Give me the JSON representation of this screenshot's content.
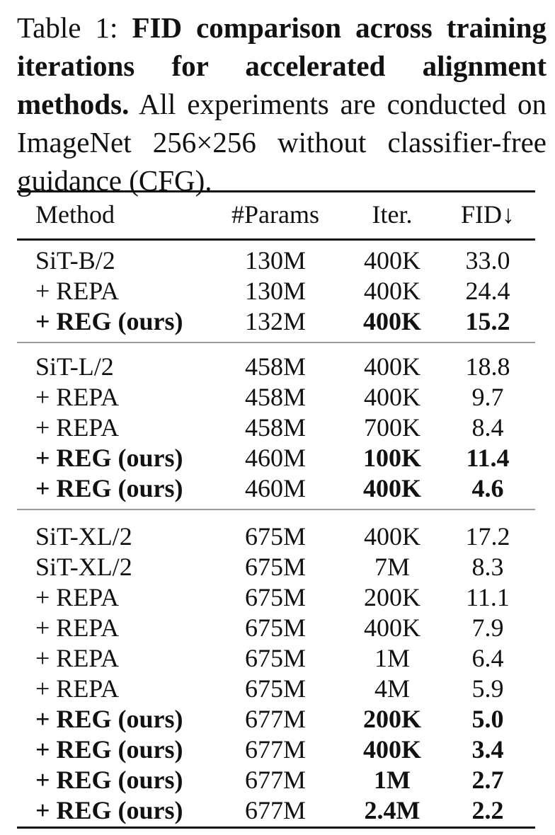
{
  "caption": {
    "label": "Table 1:",
    "bold_text": "FID comparison across training iterations for accelerated alignment methods.",
    "text": "All experiments are conducted on ImageNet 256×256 without classifier-free guidance (CFG)."
  },
  "table": {
    "headers": {
      "method": "Method",
      "params": "#Params",
      "iter": "Iter.",
      "fid": "FID↓"
    },
    "groups": [
      {
        "rows": [
          {
            "method": "SiT-B/2",
            "params": "130M",
            "iter": "400K",
            "fid": "33.0",
            "bold_method": false,
            "bold_iter": false,
            "bold_fid": false
          },
          {
            "method": "+ REPA",
            "params": "130M",
            "iter": "400K",
            "fid": "24.4",
            "bold_method": false,
            "bold_iter": false,
            "bold_fid": false
          },
          {
            "method": "+ REG (ours)",
            "params": "132M",
            "iter": "400K",
            "fid": "15.2",
            "bold_method": true,
            "bold_iter": true,
            "bold_fid": true
          }
        ]
      },
      {
        "rows": [
          {
            "method": "SiT-L/2",
            "params": "458M",
            "iter": "400K",
            "fid": "18.8",
            "bold_method": false,
            "bold_iter": false,
            "bold_fid": false
          },
          {
            "method": "+ REPA",
            "params": "458M",
            "iter": "400K",
            "fid": "9.7",
            "bold_method": false,
            "bold_iter": false,
            "bold_fid": false
          },
          {
            "method": "+ REPA",
            "params": "458M",
            "iter": "700K",
            "fid": "8.4",
            "bold_method": false,
            "bold_iter": false,
            "bold_fid": false
          },
          {
            "method": "+ REG (ours)",
            "params": "460M",
            "iter": "100K",
            "fid": "11.4",
            "bold_method": true,
            "bold_iter": true,
            "bold_fid": true
          },
          {
            "method": "+ REG (ours)",
            "params": "460M",
            "iter": "400K",
            "fid": "4.6",
            "bold_method": true,
            "bold_iter": true,
            "bold_fid": true
          }
        ]
      },
      {
        "rows": [
          {
            "method": "SiT-XL/2",
            "params": "675M",
            "iter": "400K",
            "fid": "17.2",
            "bold_method": false,
            "bold_iter": false,
            "bold_fid": false
          },
          {
            "method": "SiT-XL/2",
            "params": "675M",
            "iter": "7M",
            "fid": "8.3",
            "bold_method": false,
            "bold_iter": false,
            "bold_fid": false
          },
          {
            "method": "+ REPA",
            "params": "675M",
            "iter": "200K",
            "fid": "11.1",
            "bold_method": false,
            "bold_iter": false,
            "bold_fid": false
          },
          {
            "method": "+ REPA",
            "params": "675M",
            "iter": "400K",
            "fid": "7.9",
            "bold_method": false,
            "bold_iter": false,
            "bold_fid": false
          },
          {
            "method": "+ REPA",
            "params": "675M",
            "iter": "1M",
            "fid": "6.4",
            "bold_method": false,
            "bold_iter": false,
            "bold_fid": false
          },
          {
            "method": "+ REPA",
            "params": "675M",
            "iter": "4M",
            "fid": "5.9",
            "bold_method": false,
            "bold_iter": false,
            "bold_fid": false
          },
          {
            "method": "+ REG (ours)",
            "params": "677M",
            "iter": "200K",
            "fid": "5.0",
            "bold_method": true,
            "bold_iter": true,
            "bold_fid": true
          },
          {
            "method": "+ REG (ours)",
            "params": "677M",
            "iter": "400K",
            "fid": "3.4",
            "bold_method": true,
            "bold_iter": true,
            "bold_fid": true
          },
          {
            "method": "+ REG (ours)",
            "params": "677M",
            "iter": "1M",
            "fid": "2.7",
            "bold_method": true,
            "bold_iter": true,
            "bold_fid": true
          },
          {
            "method": "+ REG (ours)",
            "params": "677M",
            "iter": "2.4M",
            "fid": "2.2",
            "bold_method": true,
            "bold_iter": true,
            "bold_fid": true
          }
        ]
      }
    ]
  }
}
